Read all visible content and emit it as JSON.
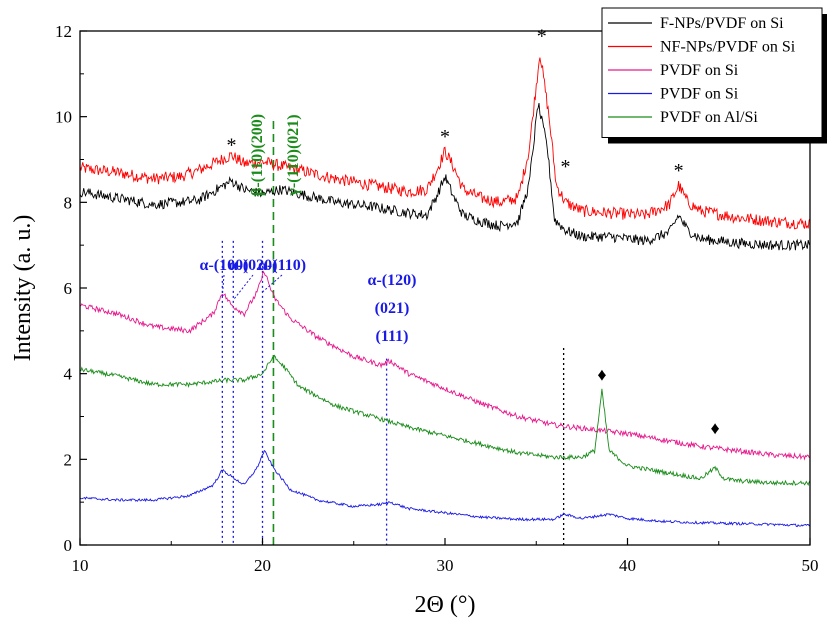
{
  "chart_data": {
    "type": "line",
    "xlabel": "2Θ (°)",
    "ylabel": "Intensity (a. u.)",
    "xlim": [
      10,
      50
    ],
    "ylim": [
      0,
      12
    ],
    "xticks": [
      10,
      20,
      30,
      40,
      50
    ],
    "yticks": [
      0,
      2,
      4,
      6,
      8,
      10,
      12
    ],
    "grid": false,
    "legend_position": "top-right",
    "series": [
      {
        "name": "F-NPs/PVDF on Si",
        "color": "#000000",
        "points": [
          [
            10,
            8.25
          ],
          [
            12,
            8.1
          ],
          [
            14,
            7.95
          ],
          [
            15.5,
            8.0
          ],
          [
            16.5,
            8.05
          ],
          [
            17.5,
            8.3
          ],
          [
            18.3,
            8.5
          ],
          [
            19,
            8.3
          ],
          [
            20,
            8.2
          ],
          [
            21,
            8.3
          ],
          [
            22,
            8.2
          ],
          [
            24,
            8.0
          ],
          [
            26,
            7.9
          ],
          [
            28,
            7.75
          ],
          [
            29,
            7.7
          ],
          [
            29.6,
            8.2
          ],
          [
            30,
            8.6
          ],
          [
            30.5,
            8.1
          ],
          [
            31,
            7.7
          ],
          [
            32,
            7.55
          ],
          [
            33,
            7.45
          ],
          [
            34,
            7.55
          ],
          [
            34.6,
            8.4
          ],
          [
            35.1,
            10.3
          ],
          [
            35.6,
            9.3
          ],
          [
            36,
            7.6
          ],
          [
            36.6,
            7.35
          ],
          [
            37.5,
            7.2
          ],
          [
            39,
            7.2
          ],
          [
            41,
            7.1
          ],
          [
            42.3,
            7.3
          ],
          [
            42.8,
            7.7
          ],
          [
            43.3,
            7.35
          ],
          [
            44,
            7.15
          ],
          [
            46,
            7.05
          ],
          [
            48,
            7.0
          ],
          [
            50,
            7.0
          ]
        ]
      },
      {
        "name": "NF-NPs/PVDF on Si",
        "color": "#ff0000",
        "points": [
          [
            10,
            8.8
          ],
          [
            12,
            8.7
          ],
          [
            14,
            8.55
          ],
          [
            15.5,
            8.6
          ],
          [
            16.5,
            8.75
          ],
          [
            17.5,
            8.95
          ],
          [
            18.3,
            9.1
          ],
          [
            19,
            8.9
          ],
          [
            20,
            8.95
          ],
          [
            21,
            8.85
          ],
          [
            22,
            8.75
          ],
          [
            24,
            8.55
          ],
          [
            26,
            8.4
          ],
          [
            28,
            8.25
          ],
          [
            29,
            8.3
          ],
          [
            29.6,
            8.8
          ],
          [
            30,
            9.2
          ],
          [
            30.5,
            8.8
          ],
          [
            31,
            8.3
          ],
          [
            32,
            8.1
          ],
          [
            33,
            8.0
          ],
          [
            34,
            8.1
          ],
          [
            34.6,
            9.2
          ],
          [
            35.2,
            11.5
          ],
          [
            35.7,
            10.0
          ],
          [
            36.1,
            8.4
          ],
          [
            36.6,
            8.0
          ],
          [
            37.5,
            7.8
          ],
          [
            39,
            7.75
          ],
          [
            41,
            7.7
          ],
          [
            42.3,
            7.95
          ],
          [
            42.8,
            8.4
          ],
          [
            43.3,
            8.0
          ],
          [
            44,
            7.8
          ],
          [
            46,
            7.65
          ],
          [
            48,
            7.55
          ],
          [
            50,
            7.5
          ]
        ]
      },
      {
        "name": "PVDF on Si",
        "color": "#e6198c",
        "points": [
          [
            10,
            5.6
          ],
          [
            12,
            5.4
          ],
          [
            14,
            5.1
          ],
          [
            16,
            5.0
          ],
          [
            17.3,
            5.4
          ],
          [
            17.8,
            5.9
          ],
          [
            18.3,
            5.6
          ],
          [
            19,
            5.4
          ],
          [
            19.7,
            5.9
          ],
          [
            20.1,
            6.4
          ],
          [
            20.6,
            5.8
          ],
          [
            21.5,
            5.3
          ],
          [
            23,
            4.85
          ],
          [
            25,
            4.4
          ],
          [
            26.5,
            4.2
          ],
          [
            27,
            4.3
          ],
          [
            28,
            4.0
          ],
          [
            30,
            3.65
          ],
          [
            32,
            3.3
          ],
          [
            34,
            3.0
          ],
          [
            36,
            2.8
          ],
          [
            38,
            2.7
          ],
          [
            40,
            2.6
          ],
          [
            42,
            2.45
          ],
          [
            44,
            2.3
          ],
          [
            46,
            2.2
          ],
          [
            48,
            2.1
          ],
          [
            50,
            2.05
          ]
        ]
      },
      {
        "name": "PVDF on Si",
        "color": "#1a1ae6",
        "points": [
          [
            10,
            1.1
          ],
          [
            12,
            1.05
          ],
          [
            14,
            1.05
          ],
          [
            16,
            1.15
          ],
          [
            17.3,
            1.4
          ],
          [
            17.8,
            1.75
          ],
          [
            18.3,
            1.6
          ],
          [
            19,
            1.4
          ],
          [
            19.7,
            1.8
          ],
          [
            20.1,
            2.2
          ],
          [
            20.6,
            1.8
          ],
          [
            21.5,
            1.3
          ],
          [
            23,
            1.05
          ],
          [
            25,
            0.9
          ],
          [
            26.5,
            0.95
          ],
          [
            27,
            1.0
          ],
          [
            28,
            0.85
          ],
          [
            30,
            0.75
          ],
          [
            32,
            0.65
          ],
          [
            34,
            0.6
          ],
          [
            36,
            0.6
          ],
          [
            36.5,
            0.72
          ],
          [
            37.5,
            0.62
          ],
          [
            39,
            0.72
          ],
          [
            40,
            0.62
          ],
          [
            42,
            0.55
          ],
          [
            44,
            0.52
          ],
          [
            46,
            0.5
          ],
          [
            48,
            0.48
          ],
          [
            50,
            0.45
          ]
        ]
      },
      {
        "name": "PVDF on Al/Si",
        "color": "#1a8c1a",
        "points": [
          [
            10,
            4.1
          ],
          [
            12,
            3.95
          ],
          [
            14,
            3.75
          ],
          [
            16,
            3.75
          ],
          [
            18,
            3.85
          ],
          [
            19,
            3.85
          ],
          [
            20,
            4.0
          ],
          [
            20.6,
            4.4
          ],
          [
            21.2,
            4.15
          ],
          [
            22,
            3.7
          ],
          [
            24,
            3.25
          ],
          [
            26,
            3.0
          ],
          [
            28,
            2.75
          ],
          [
            30,
            2.55
          ],
          [
            32,
            2.35
          ],
          [
            34,
            2.15
          ],
          [
            36,
            2.05
          ],
          [
            37.5,
            2.05
          ],
          [
            38.2,
            2.2
          ],
          [
            38.6,
            3.6
          ],
          [
            39,
            2.2
          ],
          [
            40,
            1.85
          ],
          [
            42,
            1.7
          ],
          [
            44,
            1.55
          ],
          [
            44.8,
            1.8
          ],
          [
            45.3,
            1.55
          ],
          [
            46,
            1.5
          ],
          [
            48,
            1.45
          ],
          [
            50,
            1.45
          ]
        ]
      }
    ],
    "annotations": [
      {
        "text": "β-(110)(200)",
        "color": "#1a8c1a",
        "x": 20.6,
        "vertical": true
      },
      {
        "text": "γ-(110)(021)",
        "color": "#1a8c1a",
        "x": 21.6,
        "vertical": true
      },
      {
        "text": "α-(100)",
        "color": "#1a1ae6",
        "x": 17.8
      },
      {
        "text": "α-(020)",
        "color": "#1a1ae6",
        "x": 18.4
      },
      {
        "text": "α-(110)",
        "color": "#1a1ae6",
        "x": 20.0
      },
      {
        "text": "α-(120)",
        "color": "#1a1ae6",
        "x": 26.8
      },
      {
        "text": "(021)",
        "color": "#1a1ae6",
        "x": 26.8
      },
      {
        "text": "(111)",
        "color": "#1a1ae6",
        "x": 26.8
      }
    ],
    "markers": [
      {
        "symbol": "*",
        "x": 18.3
      },
      {
        "symbol": "*",
        "x": 30.0
      },
      {
        "symbol": "*",
        "x": 35.3
      },
      {
        "symbol": "*",
        "x": 36.6
      },
      {
        "symbol": "*",
        "x": 42.8
      },
      {
        "symbol": "♦",
        "x": 38.6
      },
      {
        "symbol": "♦",
        "x": 44.8
      }
    ],
    "reference_lines": [
      {
        "x": 17.8,
        "color": "#1a1ae6",
        "style": "dotted"
      },
      {
        "x": 18.4,
        "color": "#1a1ae6",
        "style": "dotted"
      },
      {
        "x": 20.0,
        "color": "#1a1ae6",
        "style": "dotted"
      },
      {
        "x": 26.8,
        "color": "#1a1ae6",
        "style": "dotted"
      },
      {
        "x": 20.6,
        "color": "#1a8c1a",
        "style": "dashed"
      },
      {
        "x": 36.5,
        "color": "#000000",
        "style": "dotted"
      }
    ]
  }
}
